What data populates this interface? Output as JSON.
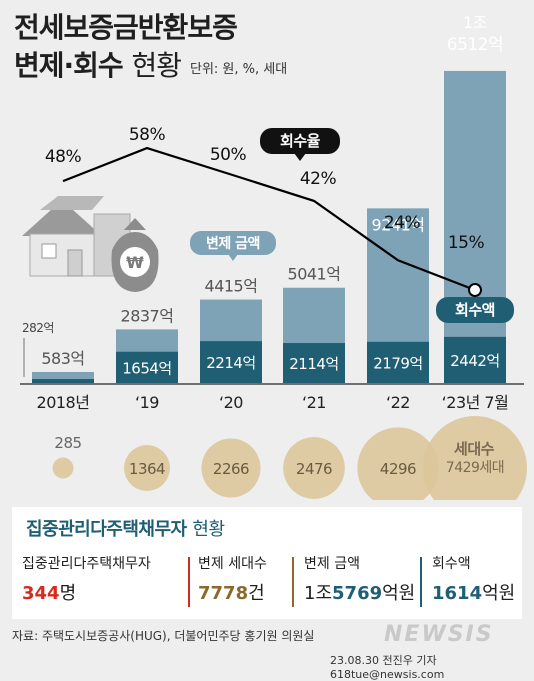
{
  "title": {
    "line1": "전세보증금반환보증",
    "line2_bold": "변제·회수",
    "line2_thin": "현황",
    "unit": "단위: 원, %, 세대"
  },
  "chart_data": {
    "type": "bar",
    "categories": [
      "2018년",
      "‘19",
      "‘20",
      "‘21",
      "‘22",
      "‘23년 7월"
    ],
    "series": [
      {
        "name": "변제 금액",
        "values": [
          583,
          2837,
          4415,
          5041,
          9241,
          16512
        ],
        "labels": [
          "583억",
          "2837억",
          "4415억",
          "5041억",
          "9241억",
          "1조|6512억"
        ]
      },
      {
        "name": "회수액",
        "values": [
          282,
          1654,
          2214,
          2114,
          2179,
          2442
        ],
        "labels": [
          "282억",
          "1654억",
          "2214억",
          "2114억",
          "2179억",
          "2442억"
        ]
      },
      {
        "name": "회수율",
        "type": "line",
        "values": [
          48,
          58,
          50,
          42,
          24,
          15
        ],
        "labels": [
          "48%",
          "58%",
          "50%",
          "42%",
          "24%",
          "15%"
        ]
      },
      {
        "name": "세대수",
        "type": "bubble",
        "values": [
          285,
          1364,
          2266,
          2476,
          4296,
          7429
        ],
        "labels": [
          "285",
          "1364",
          "2266",
          "2476",
          "4296",
          "7429세대"
        ]
      }
    ],
    "tags": {
      "repay": "변제 금액",
      "rate": "회수율",
      "recovered": "회수액",
      "households": "세대수"
    }
  },
  "info": {
    "title_bold": "집중관리다주택채무자",
    "title_thin": "현황",
    "cols": [
      {
        "label": "집중관리다주택채무자",
        "num": "344",
        "unit": "명",
        "color": "red"
      },
      {
        "label": "변제 세대수",
        "num": "7778",
        "unit": "건",
        "color": "gold"
      },
      {
        "label": "변제 금액",
        "pre": "1조",
        "num": "5769",
        "unit": "억원",
        "color": "teal"
      },
      {
        "label": "회수액",
        "num": "1614",
        "unit": "억원",
        "color": "teal"
      }
    ]
  },
  "source": "자료: 주택도시보증공사(HUG), 더불어민주당 홍기원 의원실",
  "credit": "23.08.30 전진우 기자 618tue@newsis.com",
  "logo": "NEWSIS",
  "colors": {
    "bar": "#7fa3b6",
    "bar_dark": "#1f5e73",
    "bubble": "#dcc79a",
    "line": "#000000"
  }
}
